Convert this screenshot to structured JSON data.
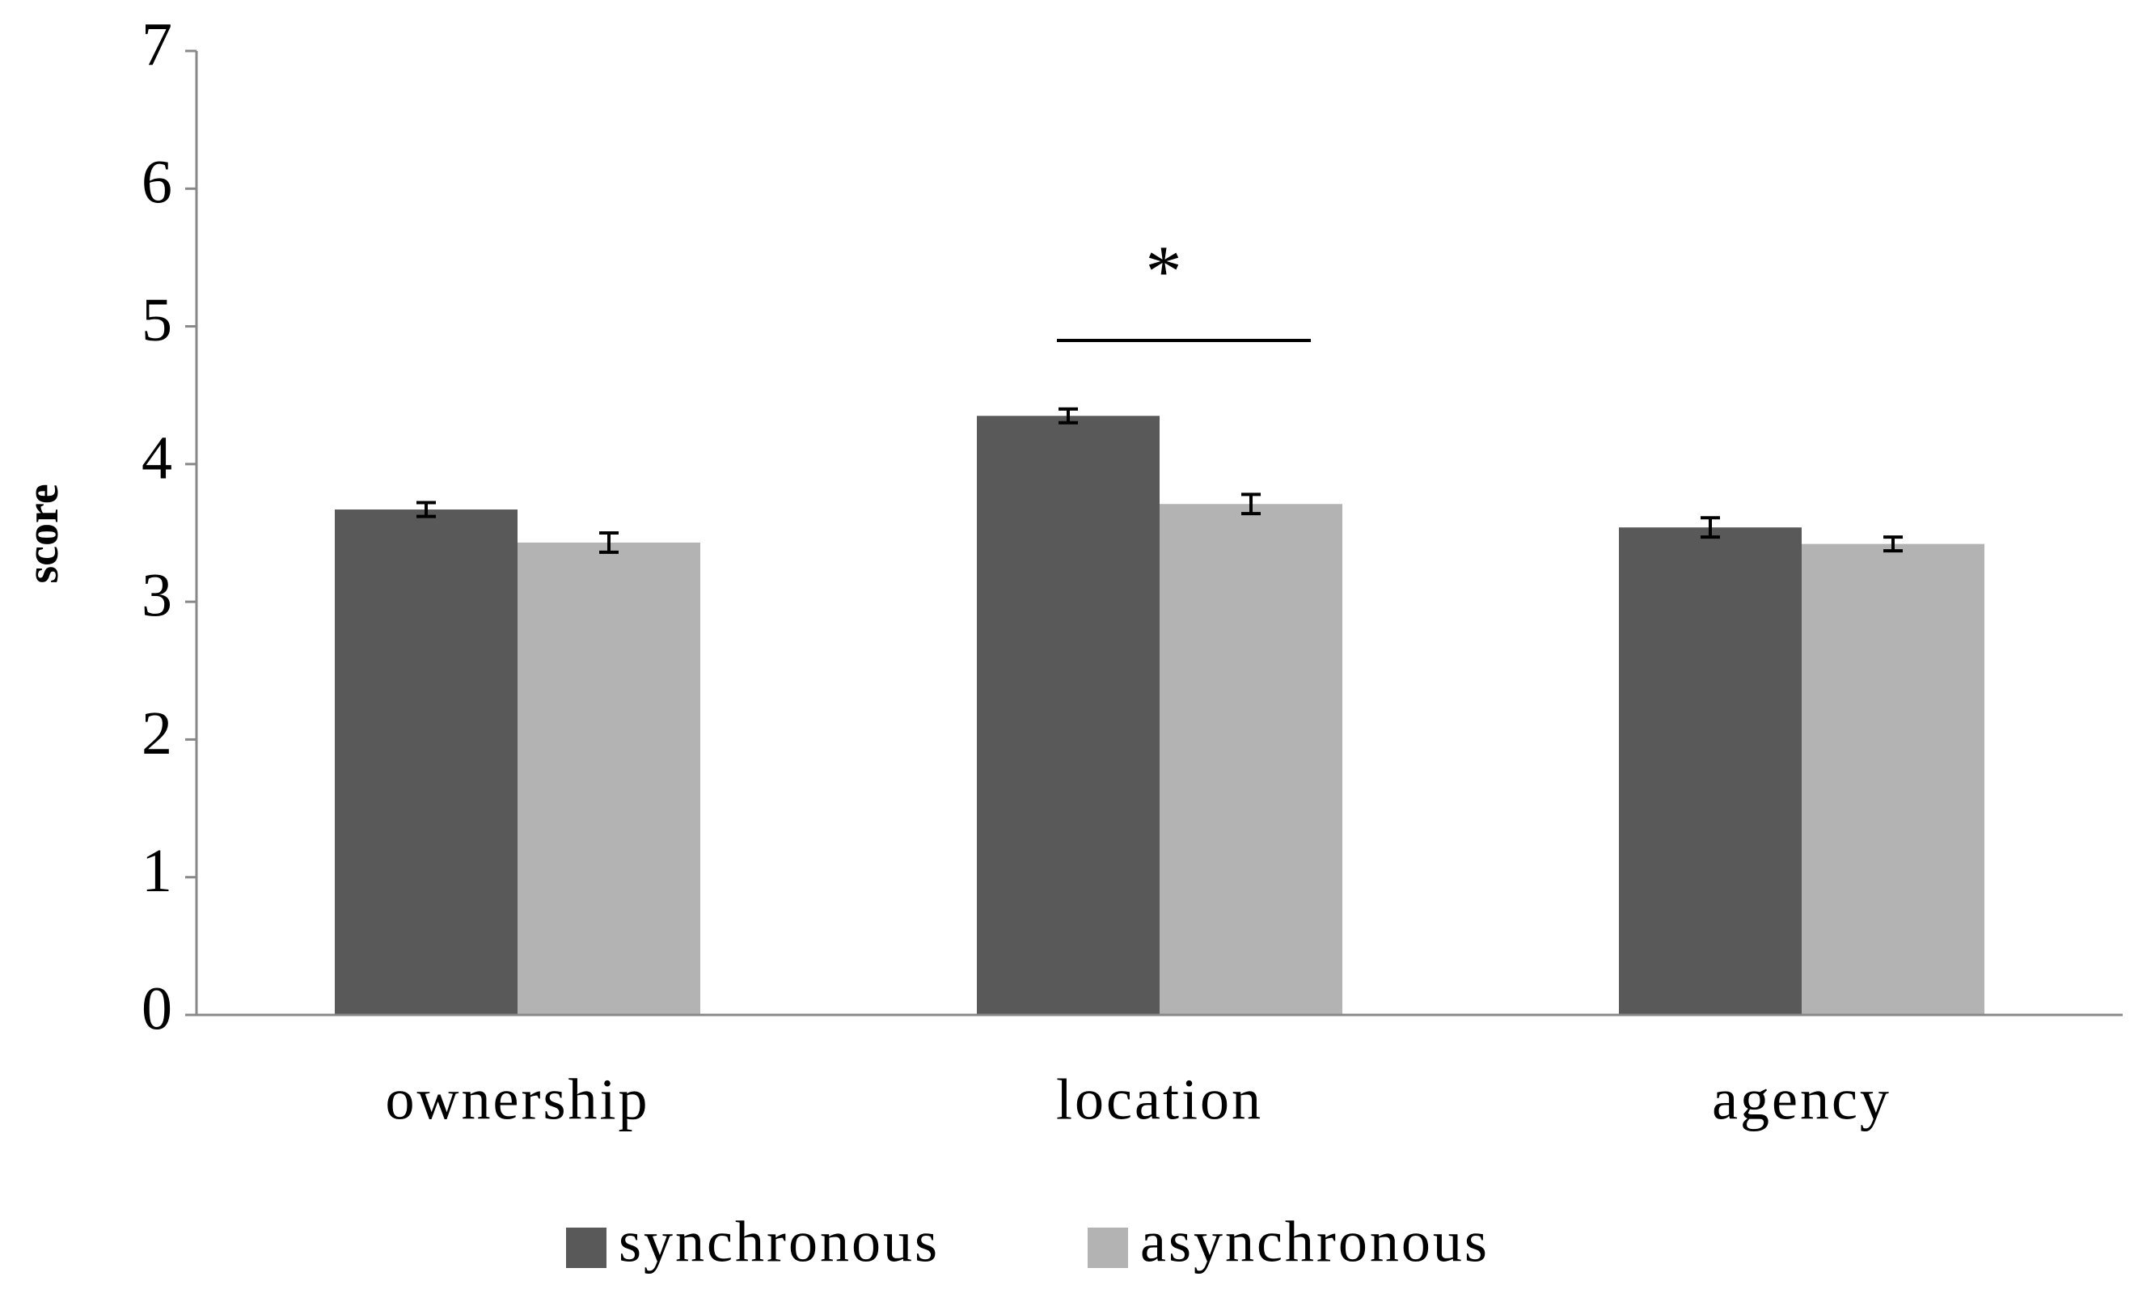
{
  "chart_data": {
    "type": "bar",
    "ylabel": "score",
    "categories": [
      "ownership",
      "location",
      "agency"
    ],
    "series": [
      {
        "name": "synchronous",
        "color": "#595959",
        "values": [
          3.67,
          4.35,
          3.54
        ],
        "errors": [
          0.05,
          0.05,
          0.07
        ]
      },
      {
        "name": "asynchronous",
        "color": "#b3b3b3",
        "values": [
          3.43,
          3.71,
          3.42
        ],
        "errors": [
          0.07,
          0.07,
          0.05
        ]
      }
    ],
    "ylim": [
      0,
      7
    ],
    "yticks": [
      0,
      1,
      2,
      3,
      4,
      5,
      6,
      7
    ],
    "annotation": "*",
    "legend": "bottom"
  }
}
